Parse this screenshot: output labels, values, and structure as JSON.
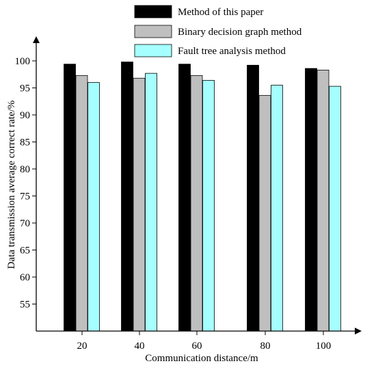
{
  "chart_data": {
    "type": "bar",
    "title": "",
    "xlabel": "Communication distance/m",
    "ylabel": "Data transmission average correct rate/%",
    "categories": [
      "20",
      "40",
      "60",
      "80",
      "100"
    ],
    "ylim": [
      50,
      102
    ],
    "yticks": [
      "55",
      "60",
      "65",
      "70",
      "75",
      "80",
      "85",
      "90",
      "95",
      "100"
    ],
    "series": [
      {
        "name": "Method of this paper",
        "color": "#000000",
        "values": [
          99.4,
          99.8,
          99.4,
          99.2,
          98.6
        ]
      },
      {
        "name": "Binary decision graph method",
        "color": "#bfbfbf",
        "values": [
          97.3,
          96.8,
          97.3,
          93.6,
          98.3
        ]
      },
      {
        "name": "Fault tree analysis method",
        "color": "#a6ffff",
        "values": [
          96.0,
          97.7,
          96.4,
          95.5,
          95.3
        ]
      }
    ],
    "legend_position": "top",
    "grid": false
  }
}
